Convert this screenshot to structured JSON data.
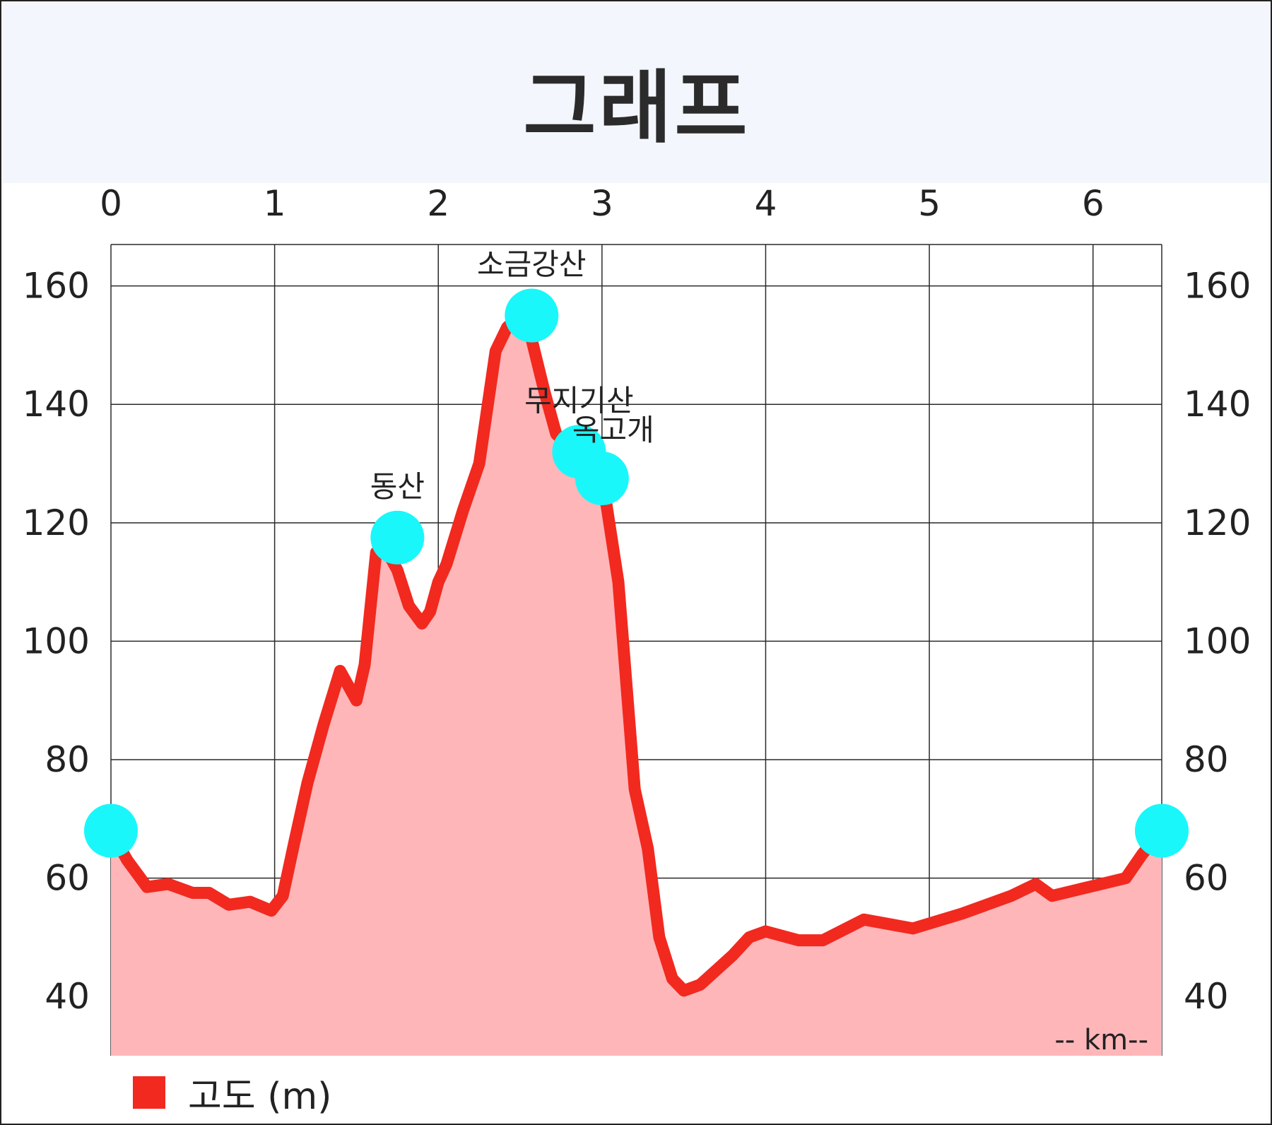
{
  "header": {
    "title": "그래프"
  },
  "legend": {
    "label": "고도 (m)"
  },
  "colors": {
    "line": "#f2291f",
    "fill": "#ffb6b9",
    "marker": "#19f7fb",
    "grid": "#2a2a2a",
    "header_bg": "#f3f6fd"
  },
  "chart_data": {
    "type": "area",
    "title": "",
    "xlabel": "-- km--",
    "ylabel": "",
    "xlim": [
      0,
      6.42
    ],
    "ylim": [
      30,
      167
    ],
    "x_ticks": [
      0,
      1,
      2,
      3,
      4,
      5,
      6
    ],
    "y_ticks": [
      40,
      60,
      80,
      100,
      120,
      140,
      160
    ],
    "x_tick_labels": [
      "0",
      "1",
      "2",
      "3",
      "4",
      "5",
      "6"
    ],
    "y_tick_labels": [
      "40",
      "60",
      "80",
      "100",
      "120",
      "140",
      "160"
    ],
    "grid": true,
    "legend_position": "bottom-left",
    "series": [
      {
        "name": "고도 (m)",
        "x": [
          0,
          0.1,
          0.22,
          0.35,
          0.5,
          0.6,
          0.72,
          0.85,
          0.98,
          1.05,
          1.12,
          1.2,
          1.3,
          1.4,
          1.5,
          1.55,
          1.62,
          1.67,
          1.75,
          1.82,
          1.9,
          1.95,
          2.0,
          2.05,
          2.15,
          2.25,
          2.35,
          2.42,
          2.5,
          2.57,
          2.65,
          2.72,
          2.8,
          2.86,
          2.93,
          3.0,
          3.1,
          3.2,
          3.28,
          3.35,
          3.43,
          3.5,
          3.6,
          3.7,
          3.8,
          3.9,
          4.0,
          4.2,
          4.35,
          4.6,
          4.9,
          5.2,
          5.5,
          5.65,
          5.75,
          5.9,
          6.05,
          6.2,
          6.3,
          6.42
        ],
        "values": [
          68,
          63,
          58.5,
          59,
          57.5,
          57.5,
          55.5,
          56,
          54.5,
          57,
          66,
          76,
          86,
          95,
          90,
          96,
          115,
          116,
          112,
          106,
          103,
          105,
          110,
          113,
          122,
          130,
          149,
          153,
          155,
          151,
          142,
          135,
          133,
          131,
          128,
          128,
          110,
          75,
          65,
          50,
          43,
          41,
          42,
          44.5,
          47,
          50,
          51,
          49.5,
          49.5,
          53,
          51.5,
          54,
          57,
          59,
          57,
          58,
          59,
          60,
          64,
          68
        ]
      }
    ],
    "annotations": [
      {
        "label": "동산",
        "x": 1.75,
        "y": 117.5
      },
      {
        "label": "소금강산",
        "x": 2.57,
        "y": 155
      },
      {
        "label": "무지기산",
        "x": 2.86,
        "y": 132
      },
      {
        "label": "옥고개",
        "x": 3.0,
        "y": 127.5
      }
    ],
    "endpoint_markers": [
      {
        "x": 0,
        "y": 68
      },
      {
        "x": 6.42,
        "y": 68
      }
    ]
  }
}
